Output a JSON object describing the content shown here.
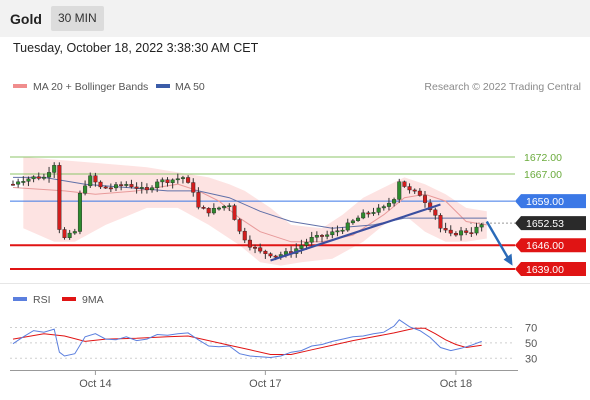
{
  "header": {
    "title": "Gold",
    "timeframe": "30 MIN",
    "timestamp": "Tuesday, October 18, 2022 3:38:30 AM CET"
  },
  "colors": {
    "bull": "#2e8b2e",
    "bear": "#d21e1e",
    "bollinger": "#fde3e2",
    "ma20": "#e89a9a",
    "ma50": "#6070a8",
    "resistance": "#8cc46a",
    "pivot": "#3b78e6",
    "support": "#e01414",
    "trend": "#3b4fa0",
    "rsi": "#5b7fde",
    "rsi_ma": "#e01414"
  },
  "chart_data": [
    {
      "type": "candlestick",
      "title": "Gold",
      "legend": [
        {
          "label": "MA 20 + Bollinger Bands",
          "color": "#f08d8d"
        },
        {
          "label": "MA 50",
          "color": "#3b5ca8"
        }
      ],
      "credit": "Research © 2022 Trading Central",
      "ylim": [
        1636,
        1684
      ],
      "x_ticks": [
        {
          "label": "Oct 14",
          "index": 16
        },
        {
          "label": "Oct 17",
          "index": 49
        },
        {
          "label": "Oct 18",
          "index": 86
        }
      ],
      "keyframes": [
        [
          0,
          1664
        ],
        [
          1,
          1665
        ],
        [
          4,
          1666
        ],
        [
          6,
          1666
        ],
        [
          7,
          1668
        ],
        [
          8,
          1670
        ],
        [
          9,
          1651
        ],
        [
          10,
          1648
        ],
        [
          11,
          1649
        ],
        [
          12,
          1650
        ],
        [
          13,
          1661
        ],
        [
          14,
          1664
        ],
        [
          15,
          1666
        ],
        [
          17,
          1663
        ],
        [
          19,
          1663
        ],
        [
          22,
          1664
        ],
        [
          26,
          1662
        ],
        [
          28,
          1665
        ],
        [
          30,
          1665
        ],
        [
          33,
          1666
        ],
        [
          35,
          1662
        ],
        [
          36,
          1657
        ],
        [
          38,
          1656
        ],
        [
          40,
          1657
        ],
        [
          42,
          1658
        ],
        [
          44,
          1650
        ],
        [
          46,
          1646
        ],
        [
          48,
          1644
        ],
        [
          51,
          1643
        ],
        [
          54,
          1644
        ],
        [
          56,
          1646
        ],
        [
          58,
          1648
        ],
        [
          61,
          1649
        ],
        [
          64,
          1651
        ],
        [
          66,
          1653
        ],
        [
          68,
          1655
        ],
        [
          70,
          1656
        ],
        [
          72,
          1657
        ],
        [
          74,
          1660
        ],
        [
          75,
          1665
        ],
        [
          77,
          1662
        ],
        [
          79,
          1661
        ],
        [
          81,
          1657
        ],
        [
          82,
          1655
        ],
        [
          83,
          1651
        ],
        [
          85,
          1649
        ],
        [
          87,
          1650
        ],
        [
          89,
          1650
        ],
        [
          90,
          1651
        ],
        [
          91,
          1652
        ]
      ],
      "bollinger": {
        "upper": [
          [
            2,
            1672
          ],
          [
            10,
            1671
          ],
          [
            18,
            1670
          ],
          [
            26,
            1669
          ],
          [
            34,
            1667
          ],
          [
            38,
            1666
          ],
          [
            42,
            1664
          ],
          [
            45,
            1662
          ],
          [
            50,
            1657
          ],
          [
            54,
            1652
          ],
          [
            60,
            1651
          ],
          [
            64,
            1655
          ],
          [
            68,
            1660
          ],
          [
            72,
            1663
          ],
          [
            76,
            1666
          ],
          [
            80,
            1664
          ],
          [
            84,
            1661
          ],
          [
            88,
            1657
          ],
          [
            92,
            1656
          ]
        ],
        "lower": [
          [
            2,
            1651
          ],
          [
            8,
            1647
          ],
          [
            12,
            1647
          ],
          [
            18,
            1652
          ],
          [
            26,
            1657
          ],
          [
            32,
            1657
          ],
          [
            38,
            1652
          ],
          [
            44,
            1646
          ],
          [
            48,
            1641
          ],
          [
            52,
            1640
          ],
          [
            56,
            1641
          ],
          [
            62,
            1642
          ],
          [
            68,
            1647
          ],
          [
            72,
            1652
          ],
          [
            76,
            1655
          ],
          [
            80,
            1650
          ],
          [
            84,
            1647
          ],
          [
            88,
            1647
          ],
          [
            92,
            1648
          ]
        ]
      },
      "ma20": [
        [
          0,
          1663
        ],
        [
          10,
          1662
        ],
        [
          16,
          1661
        ],
        [
          24,
          1662
        ],
        [
          32,
          1664
        ],
        [
          36,
          1662
        ],
        [
          40,
          1659
        ],
        [
          44,
          1654
        ],
        [
          48,
          1650
        ],
        [
          54,
          1647
        ],
        [
          60,
          1647
        ],
        [
          66,
          1649
        ],
        [
          72,
          1655
        ],
        [
          76,
          1660
        ],
        [
          80,
          1661
        ],
        [
          84,
          1659
        ],
        [
          88,
          1653
        ],
        [
          92,
          1652
        ]
      ],
      "ma50": [
        [
          0,
          1666
        ],
        [
          6,
          1666
        ],
        [
          14,
          1664
        ],
        [
          22,
          1663
        ],
        [
          30,
          1662
        ],
        [
          36,
          1662
        ],
        [
          42,
          1660
        ],
        [
          48,
          1656
        ],
        [
          54,
          1653
        ],
        [
          62,
          1651
        ],
        [
          70,
          1652
        ],
        [
          76,
          1654
        ],
        [
          82,
          1654
        ],
        [
          88,
          1654
        ],
        [
          92,
          1654
        ]
      ],
      "levels": [
        {
          "label": "1672.00",
          "value": 1672,
          "kind": "resistance"
        },
        {
          "label": "1667.00",
          "value": 1667,
          "kind": "resistance"
        },
        {
          "label": "1659.00",
          "value": 1659,
          "kind": "pivot"
        },
        {
          "label": "1652.53",
          "value": 1652.53,
          "kind": "current"
        },
        {
          "label": "1646.00",
          "value": 1646,
          "kind": "support"
        },
        {
          "label": "1639.00",
          "value": 1639,
          "kind": "support"
        }
      ],
      "trendline": {
        "from": [
          50,
          1641.5
        ],
        "to": [
          83,
          1658
        ]
      },
      "forecast_arrow": {
        "from": [
          92,
          1653
        ],
        "to": [
          97,
          1640
        ]
      }
    },
    {
      "type": "line",
      "title": "RSI",
      "legend": [
        {
          "label": "RSI",
          "color": "#5b7fde"
        },
        {
          "label": "9MA",
          "color": "#e01414"
        }
      ],
      "ylim": [
        20,
        85
      ],
      "y_ticks": [
        70,
        50,
        30
      ],
      "series": [
        {
          "name": "RSI",
          "points": [
            [
              0,
              49
            ],
            [
              2,
              58
            ],
            [
              4,
              66
            ],
            [
              6,
              64
            ],
            [
              8,
              68
            ],
            [
              9,
              38
            ],
            [
              10,
              33
            ],
            [
              12,
              36
            ],
            [
              14,
              58
            ],
            [
              16,
              62
            ],
            [
              18,
              55
            ],
            [
              20,
              54
            ],
            [
              22,
              58
            ],
            [
              24,
              53
            ],
            [
              26,
              55
            ],
            [
              28,
              61
            ],
            [
              30,
              60
            ],
            [
              32,
              62
            ],
            [
              34,
              63
            ],
            [
              36,
              54
            ],
            [
              38,
              46
            ],
            [
              40,
              45
            ],
            [
              42,
              46
            ],
            [
              44,
              36
            ],
            [
              46,
              33
            ],
            [
              48,
              32
            ],
            [
              50,
              31
            ],
            [
              52,
              33
            ],
            [
              54,
              38
            ],
            [
              56,
              40
            ],
            [
              58,
              46
            ],
            [
              60,
              48
            ],
            [
              62,
              52
            ],
            [
              64,
              55
            ],
            [
              66,
              58
            ],
            [
              68,
              59
            ],
            [
              70,
              62
            ],
            [
              72,
              64
            ],
            [
              74,
              72
            ],
            [
              75,
              80
            ],
            [
              77,
              71
            ],
            [
              79,
              66
            ],
            [
              81,
              57
            ],
            [
              83,
              44
            ],
            [
              85,
              40
            ],
            [
              87,
              43
            ],
            [
              89,
              47
            ],
            [
              91,
              52
            ]
          ]
        },
        {
          "name": "9MA",
          "points": [
            [
              0,
              55
            ],
            [
              6,
              62
            ],
            [
              10,
              59
            ],
            [
              14,
              52
            ],
            [
              18,
              55
            ],
            [
              24,
              56
            ],
            [
              30,
              58
            ],
            [
              34,
              59
            ],
            [
              38,
              53
            ],
            [
              42,
              47
            ],
            [
              46,
              41
            ],
            [
              50,
              35
            ],
            [
              54,
              35
            ],
            [
              58,
              41
            ],
            [
              62,
              47
            ],
            [
              66,
              53
            ],
            [
              70,
              58
            ],
            [
              74,
              63
            ],
            [
              78,
              69
            ],
            [
              80,
              69
            ],
            [
              82,
              62
            ],
            [
              84,
              54
            ],
            [
              86,
              48
            ],
            [
              88,
              44
            ],
            [
              91,
              47
            ]
          ]
        }
      ]
    }
  ]
}
